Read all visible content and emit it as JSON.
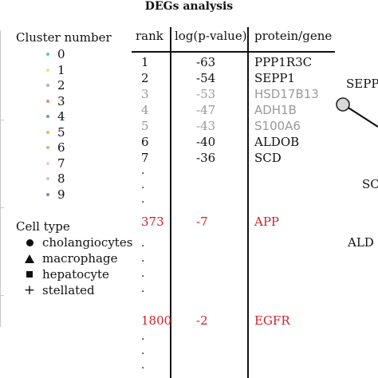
{
  "title": "DEGs analysis",
  "legend": {
    "cluster_title": "Cluster number",
    "clusters": [
      {
        "label": "0",
        "color": "#5cc3e0"
      },
      {
        "label": "1",
        "color": "#e8e08a"
      },
      {
        "label": "2",
        "color": "#b6a8d6"
      },
      {
        "label": "3",
        "color": "#e88a6e"
      },
      {
        "label": "4",
        "color": "#5aa0c8"
      },
      {
        "label": "5",
        "color": "#f0b25e"
      },
      {
        "label": "6",
        "color": "#a6cf6e"
      },
      {
        "label": "7",
        "color": "#f1c6d6"
      },
      {
        "label": "8",
        "color": "#c9c9c9"
      },
      {
        "label": "9",
        "color": "#9a7ab6"
      }
    ],
    "celltype_title": "Cell type",
    "celltypes": [
      {
        "label": "cholangiocytes",
        "icon": "circle-icon"
      },
      {
        "label": "macrophage",
        "icon": "triangle-icon"
      },
      {
        "label": "hepatocyte",
        "icon": "square-icon"
      },
      {
        "label": "stellated",
        "icon": "plus-icon"
      }
    ]
  },
  "table": {
    "headers": {
      "rank": "rank",
      "logp": "log(p-value)",
      "gene": "protein/gene"
    },
    "rows": [
      {
        "rank": "1",
        "logp": "-63",
        "gene": "PPP1R3C",
        "style": "black"
      },
      {
        "rank": "2",
        "logp": "-54",
        "gene": "SEPP1",
        "style": "black"
      },
      {
        "rank": "3",
        "logp": "-53",
        "gene": "HSD17B13",
        "style": "gray"
      },
      {
        "rank": "4",
        "logp": "-47",
        "gene": "ADH1B",
        "style": "gray"
      },
      {
        "rank": "5",
        "logp": "-43",
        "gene": "S100A6",
        "style": "gray"
      },
      {
        "rank": "6",
        "logp": "-40",
        "gene": "ALDOB",
        "style": "black"
      },
      {
        "rank": "7",
        "logp": "-36",
        "gene": "SCD",
        "style": "black"
      },
      {
        "rank": "373",
        "logp": "-7",
        "gene": "APP",
        "style": "red"
      },
      {
        "rank": "1800",
        "logp": "-2",
        "gene": "EGFR",
        "style": "red"
      }
    ],
    "ellipsis": "·"
  },
  "right_labels": {
    "sepp": "SEPP",
    "scd": "SC",
    "aldo": "ALD"
  },
  "colors": {
    "gray": "#9a9a9a",
    "red": "#d0202a",
    "black": "#111111"
  }
}
